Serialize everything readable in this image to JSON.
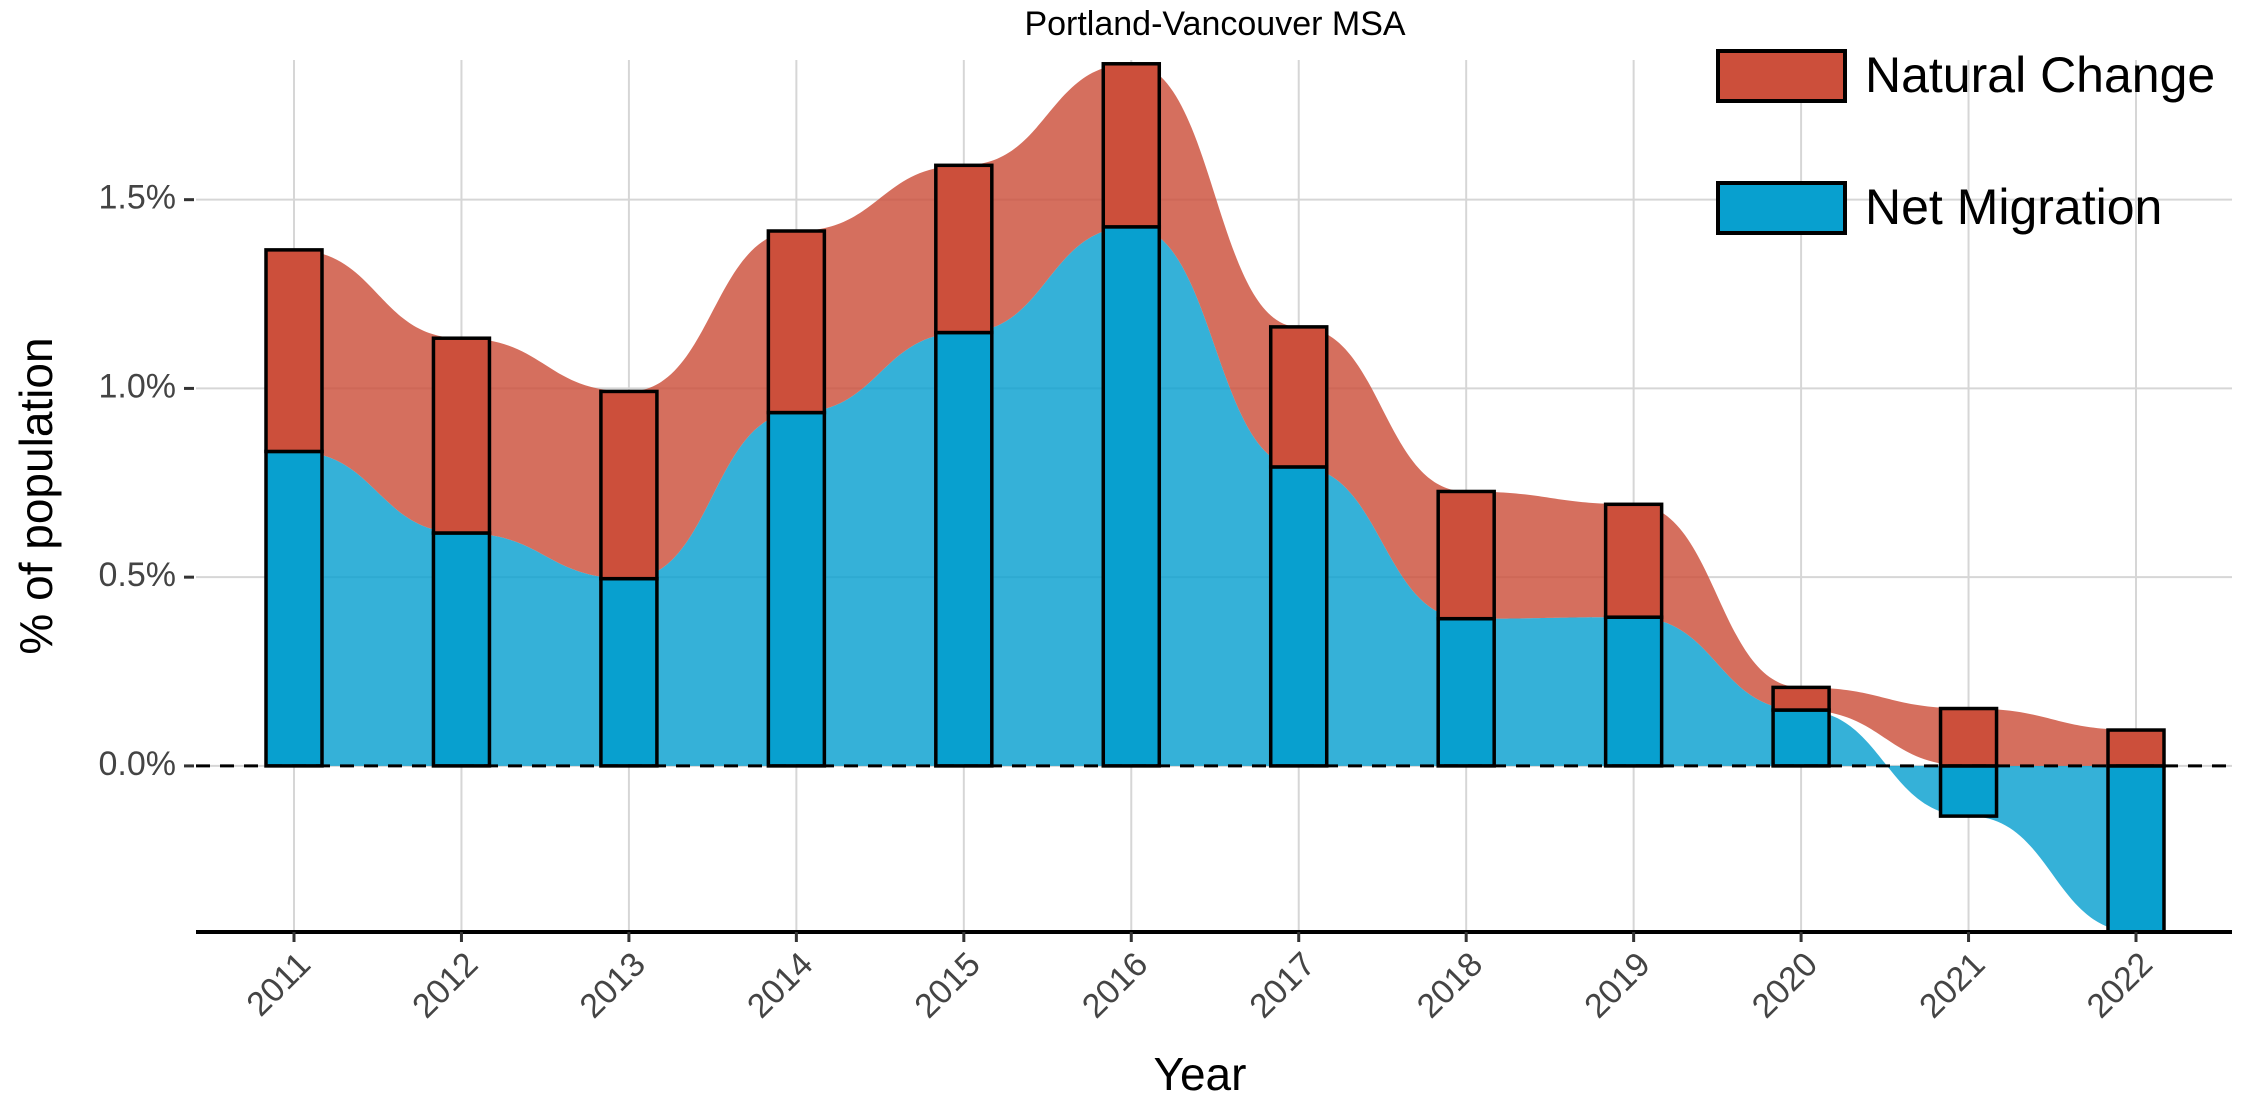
{
  "chart_data": {
    "type": "stacked-bar-area",
    "title": "Portland-Vancouver MSA",
    "x_label": "Year",
    "y_label": "% of population",
    "categories": [
      "2011",
      "2012",
      "2013",
      "2014",
      "2015",
      "2016",
      "2017",
      "2018",
      "2019",
      "2020",
      "2021",
      "2022"
    ],
    "series": [
      {
        "name": "Natural Change",
        "color": "#cc4f3b",
        "values": [
          0.534,
          0.516,
          0.496,
          0.481,
          0.443,
          0.432,
          0.371,
          0.337,
          0.299,
          0.06,
          0.152,
          0.095
        ]
      },
      {
        "name": "Net Migration",
        "color": "#08a0cf",
        "values": [
          0.833,
          0.617,
          0.496,
          0.936,
          1.148,
          1.428,
          0.792,
          0.39,
          0.394,
          0.148,
          -0.133,
          -0.44
        ]
      }
    ],
    "ylim": [
      -0.44,
      1.87
    ],
    "yticks": [
      {
        "value": 0,
        "label": "0.0%"
      },
      {
        "value": 0.5,
        "label": "0.5%"
      },
      {
        "value": 1,
        "label": "1.0%"
      },
      {
        "value": 1.5,
        "label": "1.5%"
      }
    ],
    "grid": true,
    "legend": "top-right"
  }
}
